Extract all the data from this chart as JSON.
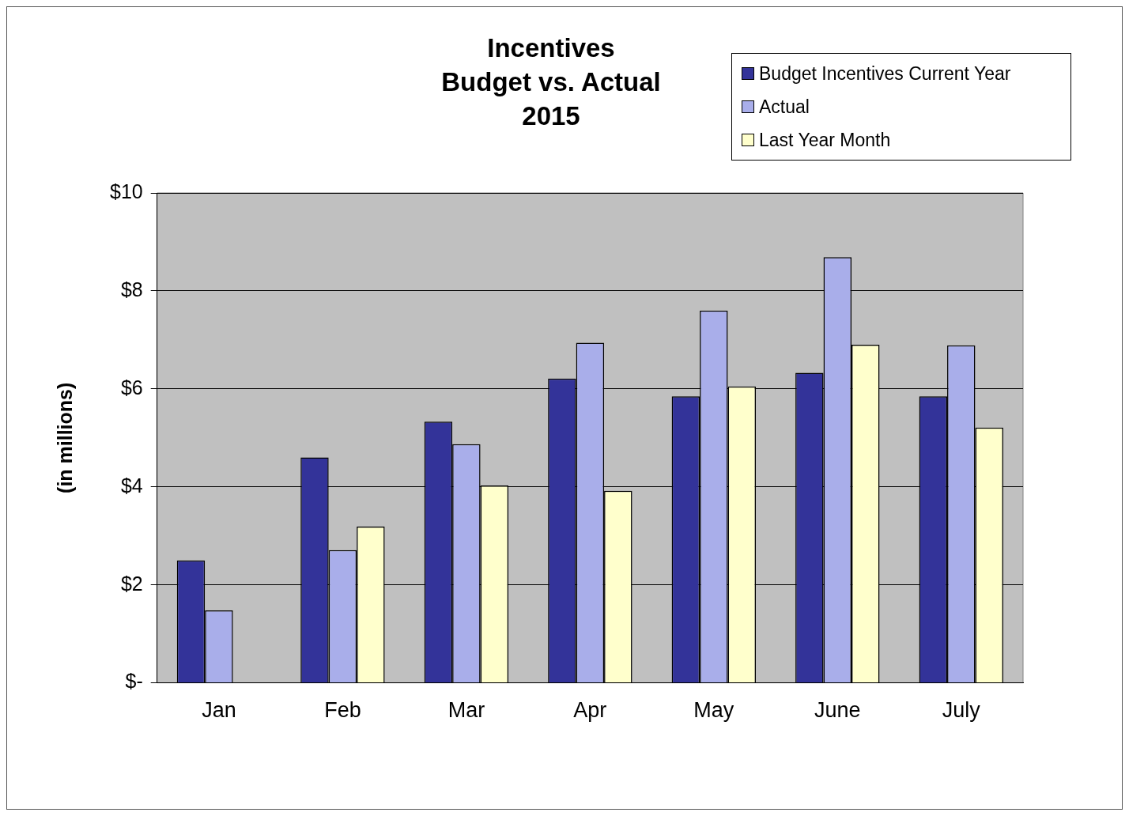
{
  "chart_data": {
    "type": "bar",
    "title": "Incentives\nBudget vs. Actual\n2015",
    "ylabel": "(in millions)",
    "categories": [
      "Jan",
      "Feb",
      "Mar",
      "Apr",
      "May",
      "June",
      "July"
    ],
    "series": [
      {
        "name": "Budget Incentives Current Year",
        "color": "#333399",
        "values": [
          2.5,
          4.6,
          5.33,
          6.21,
          5.85,
          6.33,
          5.85
        ]
      },
      {
        "name": "Actual",
        "color": "#a9aeea",
        "values": [
          1.48,
          2.71,
          4.87,
          6.94,
          7.6,
          8.69,
          6.89
        ]
      },
      {
        "name": "Last Year Month",
        "color": "#ffffcc",
        "values": [
          null,
          3.19,
          4.03,
          3.92,
          6.05,
          6.9,
          5.21
        ]
      }
    ],
    "ylim": [
      0,
      10
    ],
    "yticks": [
      {
        "value": 0,
        "label": "$-"
      },
      {
        "value": 2,
        "label": "$2"
      },
      {
        "value": 4,
        "label": "$4"
      },
      {
        "value": 6,
        "label": "$6"
      },
      {
        "value": 8,
        "label": "$8"
      },
      {
        "value": 10,
        "label": "$10"
      }
    ],
    "grid": "y",
    "legend": "top right"
  }
}
